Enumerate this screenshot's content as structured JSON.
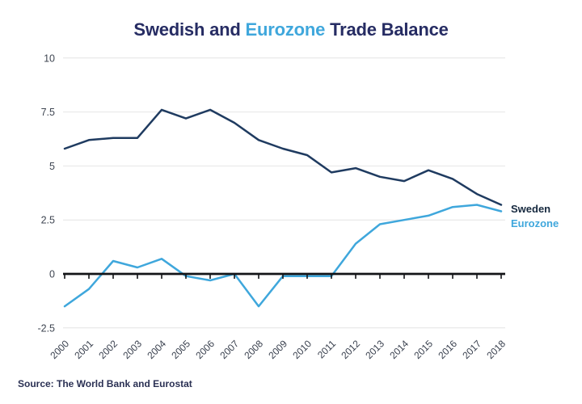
{
  "title": {
    "part1": "Swedish and ",
    "part2": "Eurozone",
    "part3": " Trade Balance"
  },
  "series_labels": {
    "sweden": "Sweden",
    "eurozone": "Eurozone"
  },
  "source": "Source: The World Bank and Eurostat",
  "colors": {
    "title_navy": "#262c63",
    "accent_blue": "#3fa7dc",
    "sweden_line": "#1f3b60",
    "eurozone_line": "#3fa7dc",
    "grid": "#e4e4e4",
    "zero_axis": "#131417",
    "ytick_text": "#3f4652",
    "year_text": "#39404e"
  },
  "chart_data": {
    "type": "line",
    "title": "Swedish and Eurozone Trade Balance",
    "x": [
      2000,
      2001,
      2002,
      2003,
      2004,
      2005,
      2006,
      2007,
      2008,
      2009,
      2010,
      2011,
      2012,
      2013,
      2014,
      2015,
      2016,
      2017,
      2018
    ],
    "x_labels": [
      "2000",
      "2001",
      "2002",
      "2003",
      "2004",
      "2005",
      "2006",
      "2007",
      "2008",
      "2009",
      "2010",
      "2011",
      "2012",
      "2013",
      "2014",
      "2015",
      "2016",
      "2017",
      "2018"
    ],
    "series": [
      {
        "name": "Sweden",
        "color_key": "sweden_line",
        "values": [
          5.8,
          6.2,
          6.3,
          6.3,
          7.6,
          7.2,
          7.6,
          7.0,
          6.2,
          5.8,
          5.5,
          4.7,
          4.9,
          4.5,
          4.3,
          4.8,
          4.4,
          3.7,
          3.2
        ]
      },
      {
        "name": "Eurozone",
        "color_key": "eurozone_line",
        "values": [
          -1.5,
          -0.7,
          0.6,
          0.3,
          0.7,
          -0.1,
          -0.3,
          0.0,
          -1.5,
          -0.1,
          -0.1,
          -0.1,
          1.4,
          2.3,
          2.5,
          2.7,
          3.1,
          3.2,
          2.9
        ]
      }
    ],
    "xlabel": "",
    "ylabel": "",
    "ylim": [
      -2.5,
      10
    ],
    "yticks": [
      10,
      7.5,
      5,
      2.5,
      0,
      -2.5
    ],
    "ytick_labels": [
      "10",
      "7.5",
      "5",
      "2.5",
      "0",
      "-2.5"
    ],
    "grid": "horizontal",
    "zero_baseline": true,
    "legend_position": "right-end-labels"
  }
}
